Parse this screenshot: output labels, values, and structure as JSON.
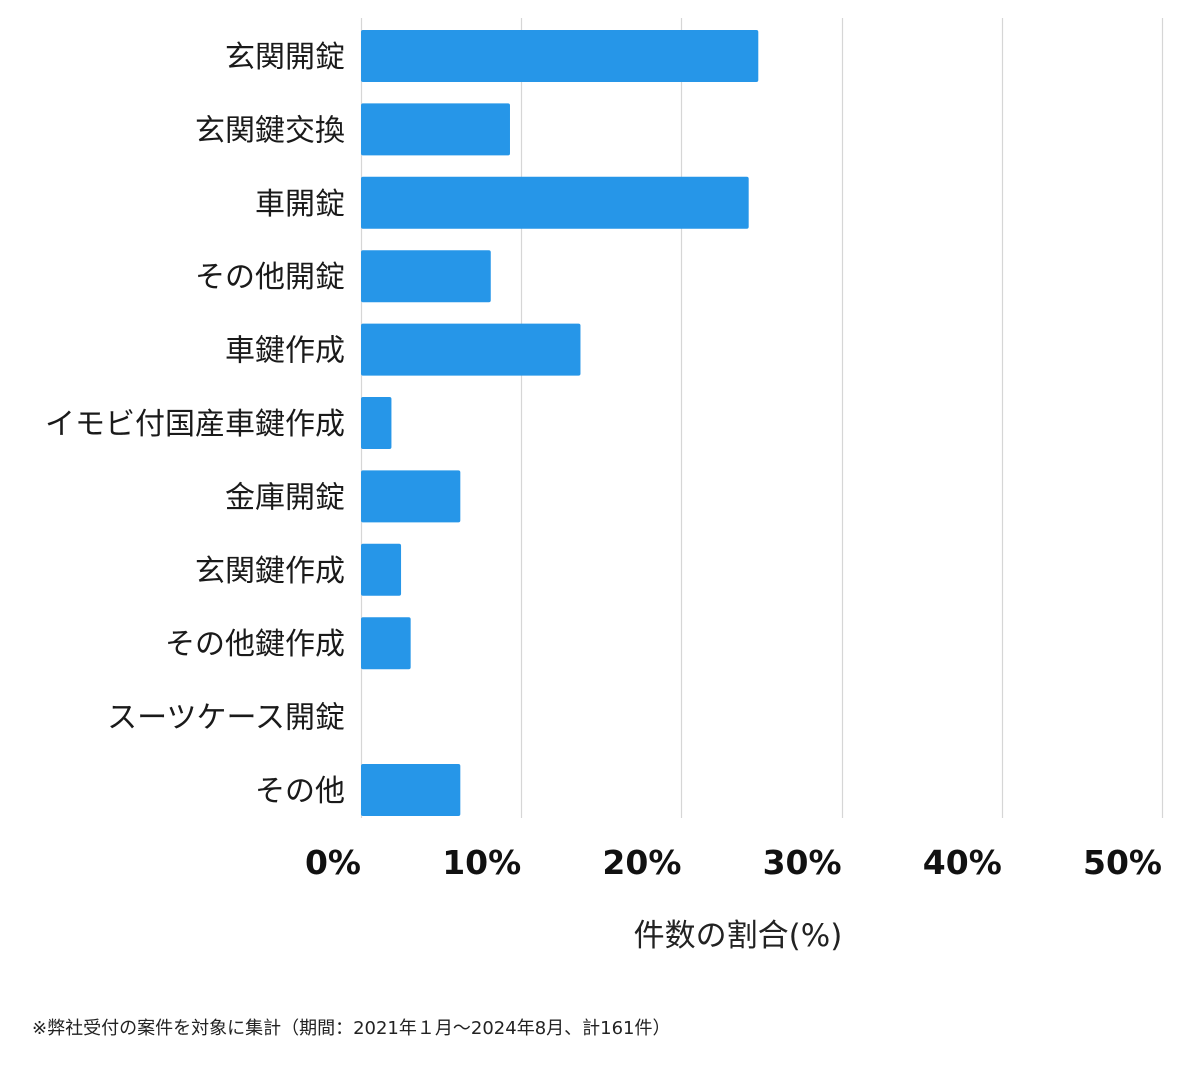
{
  "chart_data": {
    "type": "bar",
    "orientation": "horizontal",
    "categories": [
      "玄関開錠",
      "玄関鍵交換",
      "車開錠",
      "その他開錠",
      "車鍵作成",
      "イモビ付国産車鍵作成",
      "金庫開錠",
      "玄関鍵作成",
      "その他鍵作成",
      "スーツケース開錠",
      "その他"
    ],
    "values": [
      24.8,
      9.3,
      24.2,
      8.1,
      13.7,
      1.9,
      6.2,
      2.5,
      3.1,
      0,
      6.2
    ],
    "xlabel": "件数の割合(%)",
    "xlim": [
      0,
      50
    ],
    "xticks": [
      0,
      10,
      20,
      30,
      40,
      50
    ],
    "xtick_labels": [
      "0%",
      "10%",
      "20%",
      "30%",
      "40%",
      "50%"
    ],
    "grid": true,
    "bar_color": "#2696e8",
    "grid_color": "#d6d6d6"
  },
  "footnote": "※弊社受付の案件を対象に集計（期間：2021年１月〜2024年8月、計161件）"
}
